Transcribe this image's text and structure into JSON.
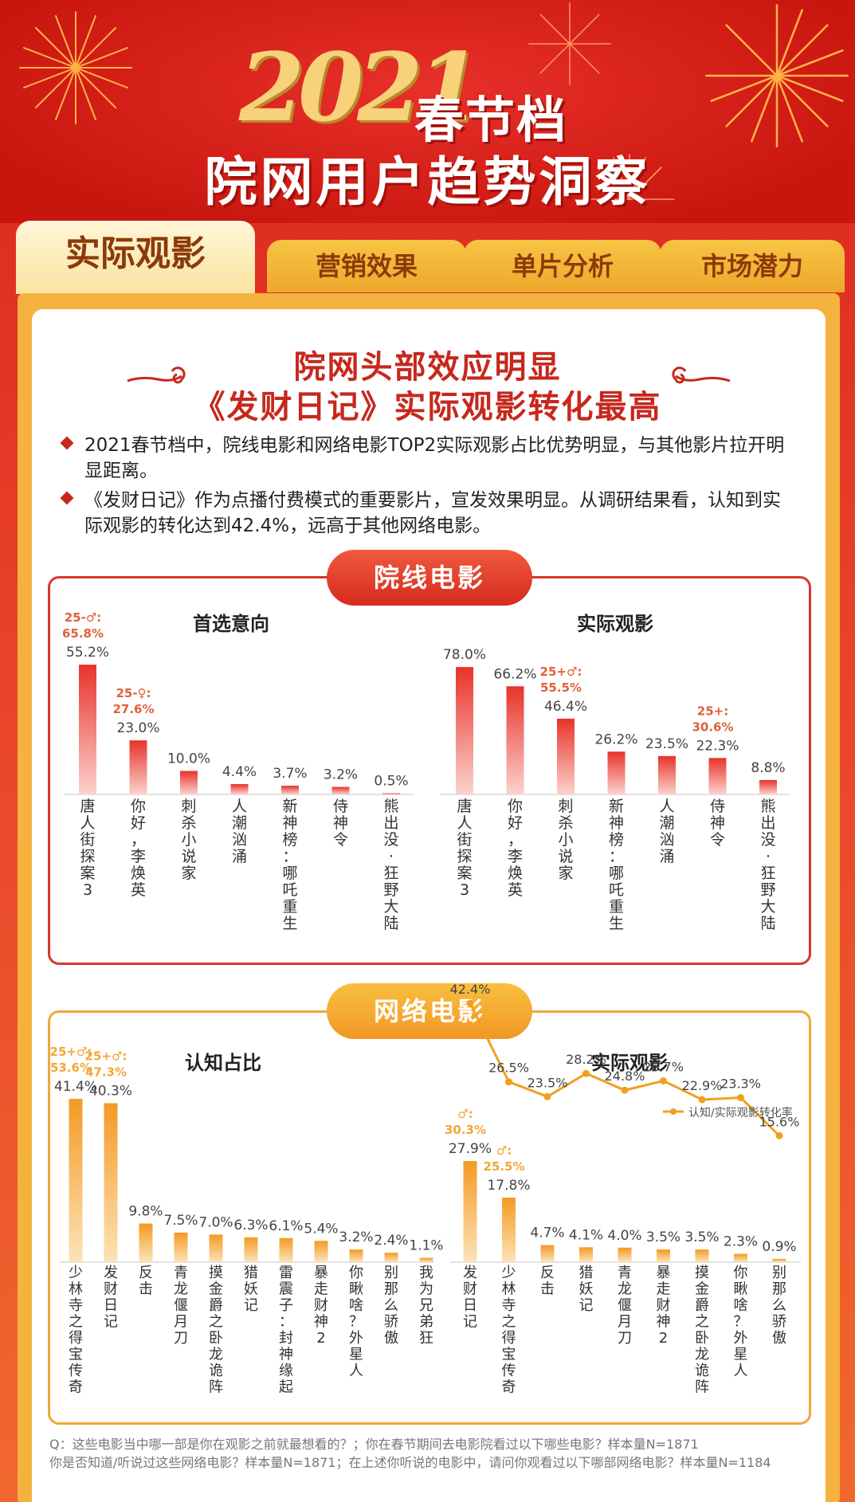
{
  "header": {
    "year": "2021",
    "title_line1": "春节档",
    "title_line2": "院网用户趋势洞察"
  },
  "tabs": [
    {
      "label": "实际观影"
    },
    {
      "label": "营销效果"
    },
    {
      "label": "单片分析"
    },
    {
      "label": "市场潜力"
    }
  ],
  "section": {
    "title_line1": "院网头部效应明显",
    "title_line2": "《发财日记》实际观影转化最高",
    "bullets": [
      "2021春节档中，院线电影和网络电影TOP2实际观影占比优势明显，与其他影片拉开明显距离。",
      "《发财日记》作为点播付费模式的重要影片，宣发效果明显。从调研结果看，认知到实际观影的转化达到42.4%，远高于其他网络电影。"
    ]
  },
  "theater": {
    "badge": "院线电影",
    "colors": {
      "bar_top": "#e8332a",
      "bar_bottom": "#fcd2ce",
      "note": "#e0613a"
    }
  },
  "online": {
    "badge": "网络电影",
    "colors": {
      "bar_top": "#f39a24",
      "bar_bottom": "#fde3b8",
      "note": "#f0a73a",
      "line": "#f0a020"
    }
  },
  "chart_data": [
    {
      "type": "bar",
      "title": "首选意向",
      "categories": [
        "唐人街探案3",
        "你好，李焕英",
        "刺杀小说家",
        "人潮汹涌",
        "新神榜：哪吒重生",
        "侍神令",
        "熊出没·狂野大陆"
      ],
      "values": [
        55.2,
        23.0,
        10.0,
        4.4,
        3.7,
        3.2,
        0.5
      ],
      "value_labels": [
        "55.2%",
        "23.0%",
        "10.0%",
        "4.4%",
        "3.7%",
        "3.2%",
        "0.5%"
      ],
      "annotations": [
        {
          "index": 0,
          "line1": "25-♂:",
          "line2": "65.8%"
        },
        {
          "index": 1,
          "line1": "25-♀:",
          "line2": "27.6%"
        }
      ],
      "ylim": [
        0,
        80
      ]
    },
    {
      "type": "bar",
      "title": "实际观影",
      "categories": [
        "唐人街探案3",
        "你好，李焕英",
        "刺杀小说家",
        "新神榜：哪吒重生",
        "人潮汹涌",
        "侍神令",
        "熊出没·狂野大陆"
      ],
      "values": [
        78.0,
        66.2,
        46.4,
        26.2,
        23.5,
        22.3,
        8.8
      ],
      "value_labels": [
        "78.0%",
        "66.2%",
        "46.4%",
        "26.2%",
        "23.5%",
        "22.3%",
        "8.8%"
      ],
      "annotations": [
        {
          "index": 2,
          "line1": "25+♂:",
          "line2": "55.5%"
        },
        {
          "index": 5,
          "line1": "25+:",
          "line2": "30.6%"
        }
      ],
      "ylim": [
        0,
        80
      ]
    },
    {
      "type": "bar",
      "title": "认知占比",
      "categories": [
        "少林寺之得宝传奇",
        "发财日记",
        "反击",
        "青龙偃月刀",
        "摸金爵之卧龙诡阵",
        "猎妖记",
        "雷震子：封神缘起",
        "暴走财神2",
        "你瞅啥？外星人",
        "别那么骄傲",
        "我为兄弟狂"
      ],
      "values": [
        41.4,
        40.3,
        9.8,
        7.5,
        7.0,
        6.3,
        6.1,
        5.4,
        3.2,
        2.4,
        1.1
      ],
      "value_labels": [
        "41.4%",
        "40.3%",
        "9.8%",
        "7.5%",
        "7.0%",
        "6.3%",
        "6.1%",
        "5.4%",
        "3.2%",
        "2.4%",
        "1.1%"
      ],
      "annotations": [
        {
          "index": 0,
          "line1": "25+♂:",
          "line2": "53.6%"
        },
        {
          "index": 1,
          "line1": "25+♂:",
          "line2": "47.3%"
        }
      ],
      "ylim": [
        0,
        42
      ]
    },
    {
      "type": "bar",
      "title": "实际观影",
      "categories": [
        "发财日记",
        "少林寺之得宝传奇",
        "反击",
        "猎妖记",
        "青龙偃月刀",
        "暴走财神2",
        "摸金爵之卧龙诡阵",
        "你瞅啥？外星人",
        "别那么骄傲"
      ],
      "values": [
        27.9,
        17.8,
        4.7,
        4.1,
        4.0,
        3.5,
        3.5,
        2.3,
        0.9
      ],
      "value_labels": [
        "27.9%",
        "17.8%",
        "4.7%",
        "4.1%",
        "4.0%",
        "3.5%",
        "3.5%",
        "2.3%",
        "0.9%"
      ],
      "annotations": [
        {
          "index": 0,
          "line1": "♂:",
          "line2": "30.3%"
        },
        {
          "index": 1,
          "line1": "♂:",
          "line2": "25.5%"
        }
      ],
      "ylim": [
        0,
        50
      ],
      "series": [
        {
          "name": "认知/实际观影转化率",
          "type": "line",
          "values": [
            42.4,
            26.5,
            23.5,
            28.2,
            24.8,
            26.7,
            22.9,
            23.3,
            15.6
          ],
          "value_labels": [
            "42.4%",
            "26.5%",
            "23.5%",
            "28.2%",
            "24.8%",
            "26.7%",
            "22.9%",
            "23.3%",
            "15.6%"
          ]
        }
      ],
      "legend": "top-right"
    }
  ],
  "footnote": {
    "line1": "Q：这些电影当中哪一部是你在观影之前就最想看的？；你在春节期间去电影院看过以下哪些电影？样本量N=1871",
    "line2": "你是否知道/听说过这些网络电影？样本量N=1871；在上述你听说的电影中，请问你观看过以下哪部网络电影？样本量N=1184"
  }
}
